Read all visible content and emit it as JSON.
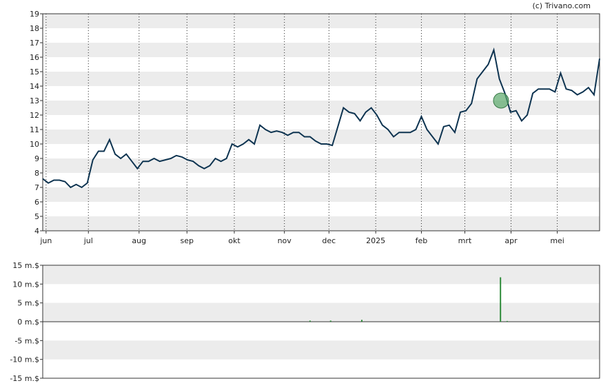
{
  "copyright": "(c) Trivano.com",
  "chart_data": [
    {
      "type": "line",
      "color": "#0d3350",
      "xlim": [
        0,
        100
      ],
      "ylim": [
        4,
        19
      ],
      "yticks": [
        4,
        5,
        6,
        7,
        8,
        9,
        10,
        11,
        12,
        13,
        14,
        15,
        16,
        17,
        18,
        19
      ],
      "xticks": [
        {
          "value": 0.6,
          "label": "jun"
        },
        {
          "value": 8.2,
          "label": "jul"
        },
        {
          "value": 17.3,
          "label": "aug"
        },
        {
          "value": 25.9,
          "label": "sep"
        },
        {
          "value": 34.4,
          "label": "okt"
        },
        {
          "value": 43.4,
          "label": "nov"
        },
        {
          "value": 51.4,
          "label": "dec"
        },
        {
          "value": 59.8,
          "label": "2025"
        },
        {
          "value": 68,
          "label": "feb"
        },
        {
          "value": 75.8,
          "label": "mrt"
        },
        {
          "value": 84.1,
          "label": "apr"
        },
        {
          "value": 92.4,
          "label": "mei"
        }
      ],
      "values": [
        7.6,
        7.3,
        7.5,
        7.5,
        7.4,
        7.0,
        7.2,
        7.0,
        7.3,
        8.9,
        9.5,
        9.5,
        10.3,
        9.3,
        9.0,
        9.3,
        8.8,
        8.3,
        8.8,
        8.8,
        9.0,
        8.8,
        8.9,
        9.0,
        9.2,
        9.1,
        8.9,
        8.8,
        8.5,
        8.3,
        8.5,
        9.0,
        8.8,
        9.0,
        10.0,
        9.8,
        10.0,
        10.3,
        10.0,
        11.3,
        11.0,
        10.8,
        10.9,
        10.8,
        10.6,
        10.8,
        10.8,
        10.5,
        10.5,
        10.2,
        10.0,
        10.0,
        9.9,
        11.2,
        12.5,
        12.2,
        12.1,
        11.6,
        12.2,
        12.5,
        12.0,
        11.3,
        11.0,
        10.5,
        10.8,
        10.8,
        10.8,
        11.0,
        11.9,
        11.0,
        10.5,
        10.0,
        11.2,
        11.3,
        10.8,
        12.2,
        12.3,
        12.8,
        14.5,
        15.0,
        15.5,
        16.5,
        14.5,
        13.5,
        12.2,
        12.3,
        11.6,
        12.0,
        13.5,
        13.8,
        13.8,
        13.8,
        13.6,
        14.9,
        13.8,
        13.7,
        13.4,
        13.6,
        13.9,
        13.4,
        15.9
      ],
      "marker": {
        "x": 82.3,
        "y": 13,
        "color": "#5aa86a"
      }
    },
    {
      "type": "bar",
      "color": "#2e8b3a",
      "xlim": [
        0,
        100
      ],
      "ylim": [
        -15,
        15
      ],
      "yticks": [
        {
          "value": -15,
          "label": "-15 m.$"
        },
        {
          "value": -10,
          "label": "-10 m.$"
        },
        {
          "value": -5,
          "label": "-5 m.$"
        },
        {
          "value": 0,
          "label": "0 m.$"
        },
        {
          "value": 5,
          "label": "5 m.$"
        },
        {
          "value": 10,
          "label": "10 m.$"
        },
        {
          "value": 15,
          "label": "15 m.$"
        }
      ],
      "x": [
        48,
        51.7,
        57.3,
        82.2,
        83.4
      ],
      "values": [
        0.3,
        0.3,
        0.5,
        11.8,
        0.2
      ]
    }
  ]
}
